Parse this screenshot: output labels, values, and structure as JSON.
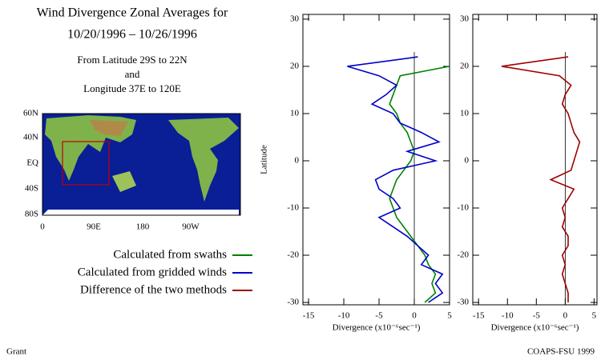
{
  "title": [
    "Wind Divergence Zonal Averages for",
    "10/20/1996 – 10/26/1996",
    "From Latitude 29S to 22N",
    "and",
    "Longitude 37E to 120E"
  ],
  "map": {
    "lat_labels": [
      "60N",
      "40N",
      "EQ",
      "40S",
      "80S"
    ],
    "lon_labels": [
      "0",
      "90E",
      "180",
      "90W"
    ]
  },
  "footer": {
    "left": "Grant",
    "right": "COAPS-FSU 1999"
  },
  "chart_data": [
    {
      "type": "line",
      "xlabel": "Divergence (x10⁻⁶sec⁻¹)",
      "ylabel": "Latitude",
      "y": [
        -30,
        -28,
        -26,
        -24,
        -22,
        -20,
        -18,
        -16,
        -14,
        -12,
        -10,
        -8,
        -6,
        -4,
        -2,
        0,
        2,
        4,
        6,
        8,
        10,
        12,
        14,
        16,
        18,
        20,
        22
      ],
      "series": [
        {
          "name": "Calculated from swaths",
          "color": "#008000",
          "values": [
            1.5,
            3,
            2.5,
            3,
            2,
            1.5,
            0.5,
            -0.5,
            -1.5,
            -2.5,
            -3,
            -3.5,
            -3,
            -2.5,
            -1.5,
            -0.5,
            0,
            -0.5,
            -1,
            -2,
            -2.5,
            -3.5,
            -3,
            -2.5,
            -2,
            5,
            null
          ]
        },
        {
          "name": "Calculated from gridded winds",
          "color": "#0000c8",
          "values": [
            2,
            4,
            3,
            4,
            1,
            2,
            0.5,
            -1,
            -3,
            -5,
            -2,
            -3,
            -5,
            -5.5,
            -3,
            3,
            -1,
            3.5,
            1,
            -2,
            -3,
            -6,
            -4,
            -2.5,
            -5,
            -9.5,
            0.5
          ]
        }
      ],
      "xlim": [
        -15.8,
        5
      ],
      "xticks": [
        -15,
        -10,
        -5,
        0,
        5
      ],
      "ylim": [
        -30.5,
        31
      ],
      "yticks": [
        -30,
        -20,
        -10,
        0,
        10,
        20,
        30
      ]
    },
    {
      "type": "line",
      "xlabel": "Divergence (x10⁻⁶sec⁻¹)",
      "y": [
        -30,
        -28,
        -26,
        -24,
        -22,
        -20,
        -18,
        -16,
        -14,
        -12,
        -10,
        -8,
        -6,
        -4,
        -2,
        0,
        2,
        4,
        6,
        8,
        10,
        12,
        14,
        16,
        18,
        20,
        22
      ],
      "series": [
        {
          "name": "Difference of the two methods",
          "color": "#a00000",
          "values": [
            0.5,
            0.5,
            0,
            -0.5,
            0,
            -0.5,
            0.5,
            0.5,
            -0.5,
            0,
            -0.5,
            0.5,
            1.5,
            -2.5,
            1,
            1.5,
            2,
            2.5,
            1.5,
            1,
            0.5,
            -0.5,
            0,
            1,
            -1,
            -11,
            0.5
          ]
        }
      ],
      "xlim": [
        -16,
        5.5
      ],
      "xticks": [
        -15,
        -10,
        -5,
        0,
        5
      ],
      "ylim": [
        -30.5,
        31
      ],
      "yticks": [
        -30,
        -20,
        -10,
        0,
        10,
        20,
        30
      ]
    }
  ]
}
